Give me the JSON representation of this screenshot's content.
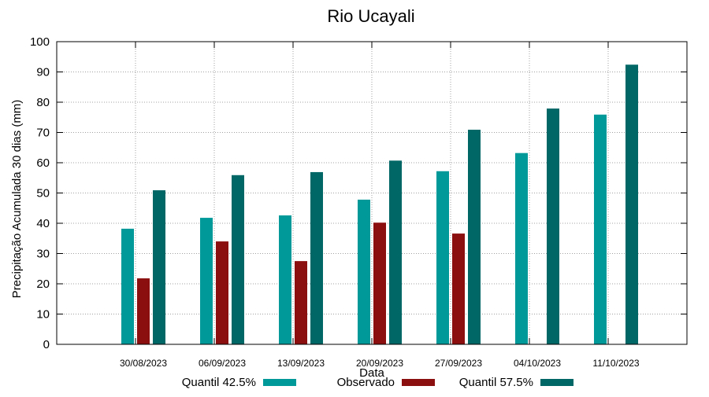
{
  "chart_data": {
    "type": "bar",
    "title": "Rio Ucayali",
    "xlabel": "Data",
    "ylabel": "Precipitação Acumulada 30 dias (mm)",
    "ylim": [
      0,
      100
    ],
    "yticks": [
      0,
      10,
      20,
      30,
      40,
      50,
      60,
      70,
      80,
      90,
      100
    ],
    "grid": true,
    "legend_position": "bottom",
    "categories": [
      "30/08/2023",
      "06/09/2023",
      "13/09/2023",
      "20/09/2023",
      "27/09/2023",
      "04/10/2023",
      "11/10/2023"
    ],
    "series": [
      {
        "name": "Quantil 42.5%",
        "color": "#009999",
        "values": [
          38.2,
          41.8,
          42.6,
          47.8,
          57.2,
          63.2,
          75.9
        ]
      },
      {
        "name": "Observado",
        "color": "#8b0f0f",
        "values": [
          21.8,
          34.0,
          27.5,
          40.2,
          36.6,
          null,
          null
        ]
      },
      {
        "name": "Quantil 57.5%",
        "color": "#006666",
        "values": [
          50.9,
          55.9,
          56.9,
          60.7,
          70.9,
          77.9,
          92.4
        ]
      }
    ]
  }
}
